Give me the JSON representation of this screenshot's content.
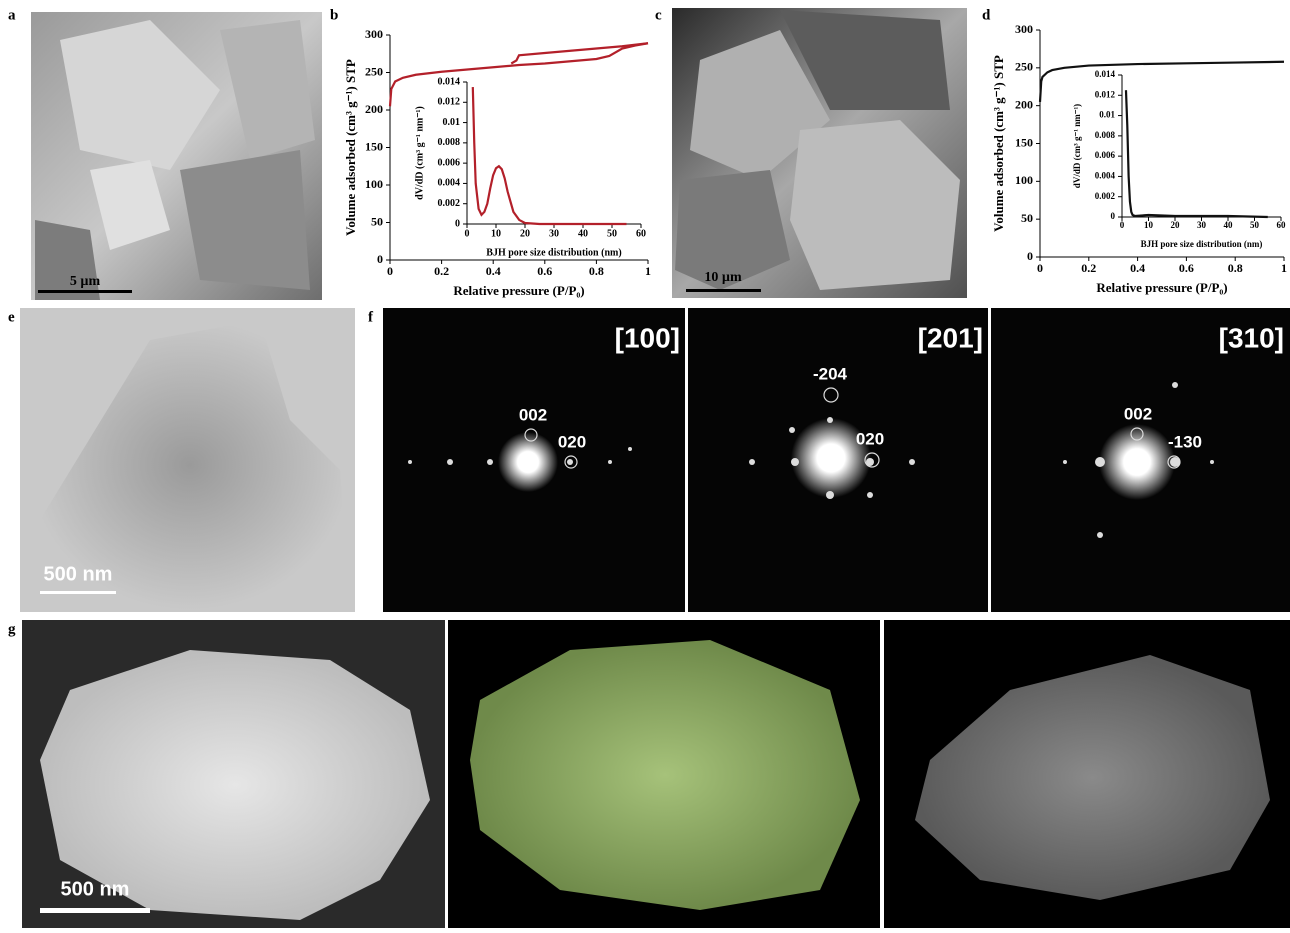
{
  "panel_labels": [
    "a",
    "b",
    "c",
    "d",
    "e",
    "f",
    "g"
  ],
  "scale_bars": [
    "5 µm",
    "10 µm",
    "500 nm",
    "500 nm"
  ],
  "diffraction": [
    {
      "zone": "[100]",
      "spots": [
        "002",
        "020"
      ]
    },
    {
      "zone": "[201]",
      "spots": [
        "-204",
        "020"
      ]
    },
    {
      "zone": "[310]",
      "spots": [
        "002",
        "-130"
      ]
    }
  ],
  "chart_data": [
    {
      "type": "line",
      "xlabel": "Relative pressure (P/P₀)",
      "ylabel": "Volume adsorbed (cm³ g⁻¹) STP",
      "xlim": [
        0,
        1
      ],
      "ylim": [
        0,
        300
      ],
      "xticks": [
        0,
        0.2,
        0.4,
        0.6,
        0.8,
        1
      ],
      "yticks": [
        0,
        50,
        100,
        150,
        200,
        250,
        300
      ],
      "series": [
        {
          "color": "#b3202a",
          "x": [
            0,
            0.005,
            0.02,
            0.05,
            0.1,
            0.2,
            0.3,
            0.4,
            0.5,
            0.6,
            0.7,
            0.8,
            0.85,
            0.9,
            0.95,
            1
          ],
          "values": [
            205,
            228,
            238,
            243,
            247,
            251,
            254,
            257,
            260,
            262,
            265,
            268,
            272,
            282,
            286,
            289
          ]
        },
        {
          "color": "#b3202a",
          "x": [
            1,
            0.95,
            0.9,
            0.8,
            0.7,
            0.6,
            0.5,
            0.49,
            0.47
          ],
          "values": [
            289,
            287,
            285,
            282,
            279,
            276,
            273,
            266,
            262
          ]
        }
      ]
    },
    {
      "type": "line",
      "xlabel": "BJH pore size distribution  (nm)",
      "ylabel": "dV/dD (cm³ g⁻¹ nm⁻¹)",
      "xlim": [
        0,
        60
      ],
      "ylim": [
        0,
        0.014
      ],
      "xticks": [
        0,
        10,
        20,
        30,
        40,
        50,
        60
      ],
      "yticks": [
        0,
        0.002,
        0.004,
        0.006,
        0.008,
        0.01,
        0.012,
        0.014
      ],
      "series": [
        {
          "color": "#b3202a",
          "x": [
            2,
            2.5,
            3,
            4,
            5,
            6,
            7,
            8,
            9,
            10,
            11,
            12,
            13,
            14,
            16,
            18,
            20,
            25,
            30,
            40,
            55
          ],
          "values": [
            0.0135,
            0.008,
            0.004,
            0.0015,
            0.0009,
            0.0012,
            0.002,
            0.0035,
            0.0048,
            0.0055,
            0.0057,
            0.0054,
            0.0045,
            0.0032,
            0.0012,
            0.0004,
            0.0001,
            0,
            0,
            0,
            0
          ]
        }
      ]
    },
    {
      "type": "line",
      "xlabel": "Relative pressure (P/P₀)",
      "ylabel": "Volume adsorbed (cm³ g⁻¹) STP",
      "xlim": [
        0,
        1
      ],
      "ylim": [
        0,
        300
      ],
      "xticks": [
        0,
        0.2,
        0.4,
        0.6,
        0.8,
        1
      ],
      "yticks": [
        0,
        50,
        100,
        150,
        200,
        250,
        300
      ],
      "series": [
        {
          "color": "#111111",
          "x": [
            0,
            0.005,
            0.01,
            0.03,
            0.05,
            0.1,
            0.2,
            0.4,
            0.6,
            0.8,
            1
          ],
          "values": [
            205,
            232,
            238,
            244,
            247,
            250,
            253,
            255,
            256,
            257,
            258
          ]
        }
      ]
    },
    {
      "type": "line",
      "xlabel": "BJH pore size distribution  (nm)",
      "ylabel": "dV/dD (cm³ g⁻¹ nm⁻¹)",
      "xlim": [
        0,
        60
      ],
      "ylim": [
        0,
        0.014
      ],
      "xticks": [
        0,
        10,
        20,
        30,
        40,
        50,
        60
      ],
      "yticks": [
        0,
        0.002,
        0.004,
        0.006,
        0.008,
        0.01,
        0.012,
        0.014
      ],
      "series": [
        {
          "color": "#111111",
          "x": [
            1.5,
            2,
            2.5,
            3,
            3.5,
            4,
            5,
            10,
            20,
            30,
            40,
            55
          ],
          "values": [
            0.0125,
            0.009,
            0.004,
            0.0015,
            0.0005,
            0.0002,
            0.0001,
            0.0002,
            0.0001,
            0.0001,
            0.0001,
            0
          ]
        }
      ]
    }
  ]
}
